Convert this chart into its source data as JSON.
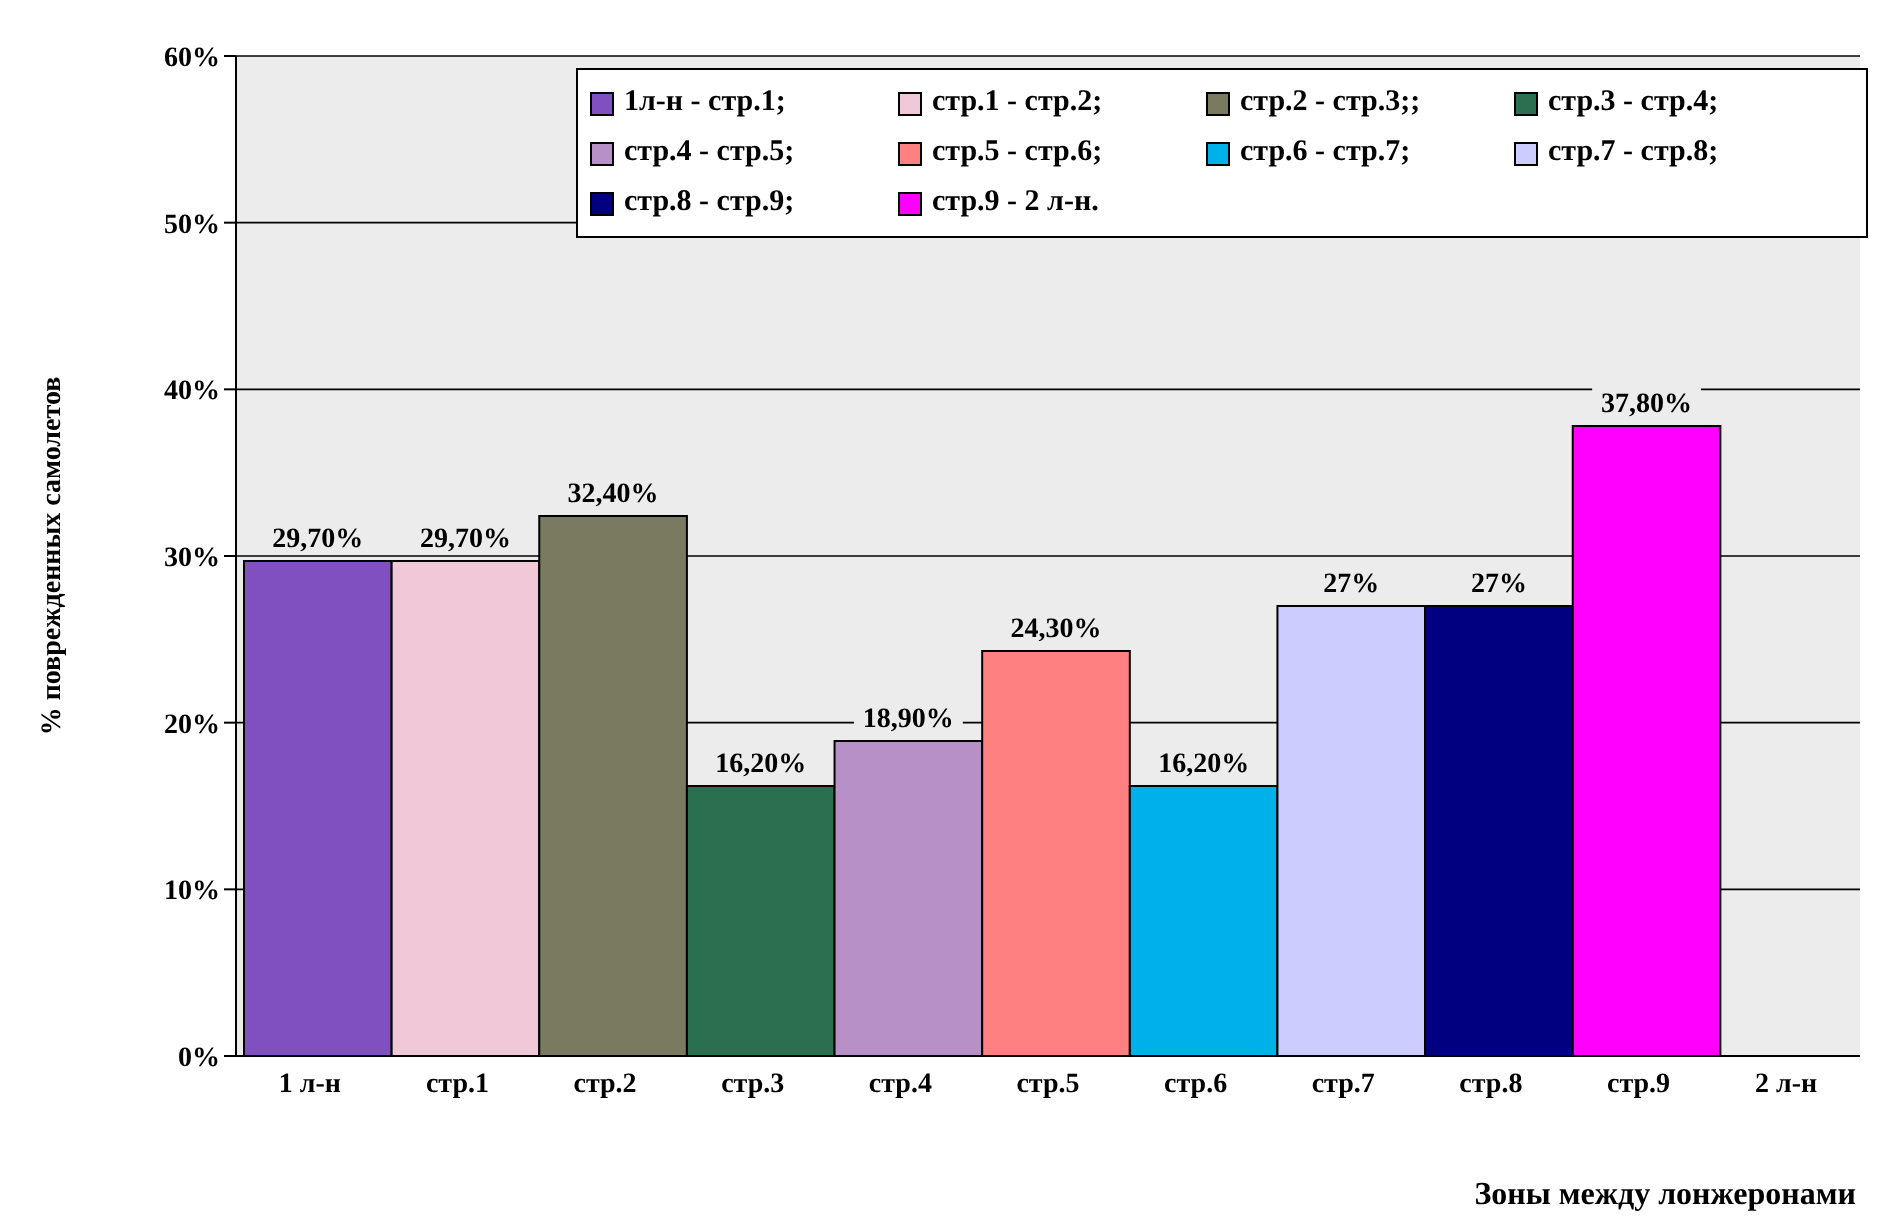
{
  "chart_data": {
    "type": "bar",
    "xlabel": "Зоны между лонжеронами",
    "ylabel": "% поврежденных самолетов",
    "categories": [
      "1 л-н",
      "стр.1",
      "стр.2",
      "стр.3",
      "стр.4",
      "стр.5",
      "стр.6",
      "стр.7",
      "стр.8",
      "стр.9",
      "2 л-н"
    ],
    "ylim": [
      0,
      60
    ],
    "yticks": [
      {
        "value": 0,
        "label": "0%"
      },
      {
        "value": 10,
        "label": "10%"
      },
      {
        "value": 20,
        "label": "20%"
      },
      {
        "value": 30,
        "label": "30%"
      },
      {
        "value": 40,
        "label": "40%"
      },
      {
        "value": 50,
        "label": "50%"
      },
      {
        "value": 60,
        "label": "60%"
      }
    ],
    "grid": "y",
    "legend": "top",
    "series": [
      {
        "name": "1л-н - стр.1;",
        "color": "#8050c0",
        "values": [
          29.7,
          null,
          null,
          null,
          null,
          null,
          null,
          null,
          null,
          null,
          null
        ],
        "value_labels": [
          "29,70%",
          null,
          null,
          null,
          null,
          null,
          null,
          null,
          null,
          null,
          null
        ]
      },
      {
        "name": "стр.1 - стр.2;",
        "color": "#f0c8d8",
        "values": [
          null,
          29.7,
          null,
          null,
          null,
          null,
          null,
          null,
          null,
          null,
          null
        ],
        "value_labels": [
          null,
          "29,70%",
          null,
          null,
          null,
          null,
          null,
          null,
          null,
          null,
          null
        ]
      },
      {
        "name": "стр.2 - стр.3;;",
        "color": "#7a7a60",
        "values": [
          null,
          null,
          32.4,
          null,
          null,
          null,
          null,
          null,
          null,
          null,
          null
        ],
        "value_labels": [
          null,
          null,
          "32,40%",
          null,
          null,
          null,
          null,
          null,
          null,
          null,
          null
        ]
      },
      {
        "name": "стр.3 - стр.4;",
        "color": "#2a7050",
        "values": [
          null,
          null,
          null,
          16.2,
          null,
          null,
          null,
          null,
          null,
          null,
          null
        ],
        "value_labels": [
          null,
          null,
          null,
          "16,20%",
          null,
          null,
          null,
          null,
          null,
          null,
          null
        ]
      },
      {
        "name": "стр.4 - стр.5;",
        "color": "#b890c8",
        "values": [
          null,
          null,
          null,
          null,
          18.9,
          null,
          null,
          null,
          null,
          null,
          null
        ],
        "value_labels": [
          null,
          null,
          null,
          null,
          "18,90%",
          null,
          null,
          null,
          null,
          null,
          null
        ]
      },
      {
        "name": "стр.5 - стр.6;",
        "color": "#ff8080",
        "values": [
          null,
          null,
          null,
          null,
          null,
          24.3,
          null,
          null,
          null,
          null,
          null
        ],
        "value_labels": [
          null,
          null,
          null,
          null,
          null,
          "24,30%",
          null,
          null,
          null,
          null,
          null
        ]
      },
      {
        "name": "стр.6 - стр.7;",
        "color": "#00b0e8",
        "values": [
          null,
          null,
          null,
          null,
          null,
          null,
          16.2,
          null,
          null,
          null,
          null
        ],
        "value_labels": [
          null,
          null,
          null,
          null,
          null,
          null,
          "16,20%",
          null,
          null,
          null,
          null
        ]
      },
      {
        "name": "стр.7 - стр.8;",
        "color": "#ccccff",
        "values": [
          null,
          null,
          null,
          null,
          null,
          null,
          null,
          27,
          null,
          null,
          null
        ],
        "value_labels": [
          null,
          null,
          null,
          null,
          null,
          null,
          null,
          "27%",
          null,
          null,
          null
        ]
      },
      {
        "name": "стр.8 - стр.9;",
        "color": "#000080",
        "values": [
          null,
          null,
          null,
          null,
          null,
          null,
          null,
          null,
          27,
          null,
          null
        ],
        "value_labels": [
          null,
          null,
          null,
          null,
          null,
          null,
          null,
          null,
          "27%",
          null,
          null
        ]
      },
      {
        "name": "стр.9 - 2 л-н.",
        "color": "#ff00ff",
        "values": [
          null,
          null,
          null,
          null,
          null,
          null,
          null,
          null,
          null,
          37.8,
          null
        ],
        "value_labels": [
          null,
          null,
          null,
          null,
          null,
          null,
          null,
          null,
          null,
          "37,80%",
          null
        ]
      }
    ]
  }
}
